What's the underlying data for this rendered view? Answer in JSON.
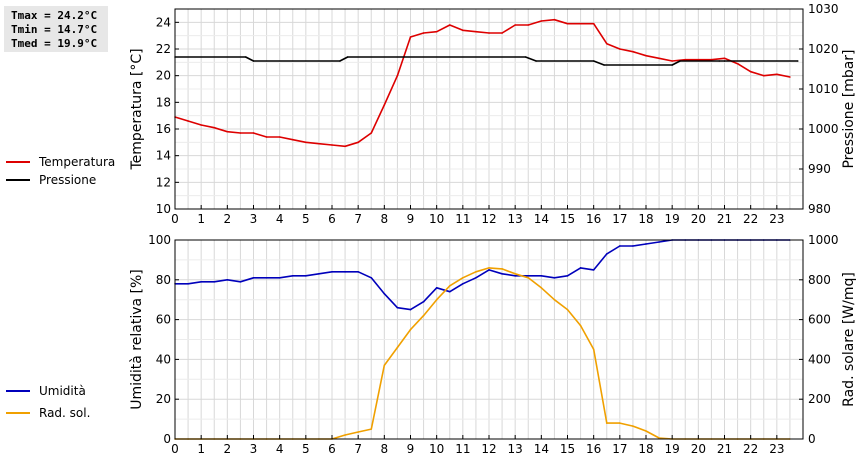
{
  "stats": {
    "tmax": "Tmax = 24.2°C",
    "tmin": "Tmin = 14.7°C",
    "tmed": "Tmed = 19.9°C"
  },
  "legend_top": [
    {
      "label": "Temperatura",
      "color": "#dd0000"
    },
    {
      "label": "Pressione",
      "color": "#000000"
    }
  ],
  "legend_bottom": [
    {
      "label": "Umidità",
      "color": "#0000bb"
    },
    {
      "label": "Rad. sol.",
      "color": "#f0a000"
    }
  ],
  "chart_data": [
    {
      "type": "line",
      "xlabel": "",
      "ylabel": "Temperatura [°C]",
      "y2label": "Pressione [mbar]",
      "xlim": [
        0,
        24
      ],
      "ylim": [
        10,
        25
      ],
      "y2lim": [
        980,
        1030
      ],
      "x_ticks": [
        0,
        1,
        2,
        3,
        4,
        5,
        6,
        7,
        8,
        9,
        10,
        11,
        12,
        13,
        14,
        15,
        16,
        17,
        18,
        19,
        20,
        21,
        22,
        23
      ],
      "y_ticks": [
        10,
        12,
        14,
        16,
        18,
        20,
        22,
        24
      ],
      "y2_ticks": [
        980,
        990,
        1000,
        1010,
        1020,
        1030
      ],
      "grid": true,
      "series": [
        {
          "name": "Temperatura",
          "axis": "left",
          "color": "#dd0000",
          "x": [
            0,
            0.5,
            1,
            1.5,
            2,
            2.5,
            3,
            3.5,
            4,
            4.5,
            5,
            5.5,
            6,
            6.5,
            7,
            7.5,
            8,
            8.5,
            9,
            9.5,
            10,
            10.5,
            11,
            11.5,
            12,
            12.5,
            13,
            13.5,
            14,
            14.5,
            15,
            15.5,
            16,
            16.5,
            17,
            17.5,
            18,
            18.5,
            19,
            19.5,
            20,
            20.5,
            21,
            21.5,
            22,
            22.5,
            23,
            23.5
          ],
          "values": [
            16.9,
            16.6,
            16.3,
            16.1,
            15.8,
            15.7,
            15.7,
            15.4,
            15.4,
            15.2,
            15.0,
            14.9,
            14.8,
            14.7,
            15.0,
            15.7,
            17.8,
            20.0,
            22.9,
            23.2,
            23.3,
            23.8,
            23.4,
            23.3,
            23.2,
            23.2,
            23.8,
            23.8,
            24.1,
            24.2,
            23.9,
            23.9,
            23.9,
            22.4,
            22.0,
            21.8,
            21.5,
            21.3,
            21.1,
            21.2,
            21.2,
            21.2,
            21.3,
            20.9,
            20.3,
            20.0,
            20.1,
            19.9
          ]
        },
        {
          "name": "Pressione",
          "axis": "right",
          "color": "#000000",
          "x": [
            0,
            2.7,
            3,
            6.3,
            6.6,
            13.4,
            13.8,
            16,
            16.4,
            19,
            19.3,
            20.8,
            21,
            23.8
          ],
          "values": [
            1018,
            1018,
            1017,
            1017,
            1018,
            1018,
            1017,
            1017,
            1016,
            1016,
            1017,
            1017,
            1017,
            1017
          ]
        }
      ]
    },
    {
      "type": "line",
      "xlabel": "",
      "ylabel": "Umidità relativa [%]",
      "y2label": "Rad. solare [W/mq]",
      "xlim": [
        0,
        24
      ],
      "ylim": [
        0,
        100
      ],
      "y2lim": [
        0,
        1000
      ],
      "x_ticks": [
        0,
        1,
        2,
        3,
        4,
        5,
        6,
        7,
        8,
        9,
        10,
        11,
        12,
        13,
        14,
        15,
        16,
        17,
        18,
        19,
        20,
        21,
        22,
        23
      ],
      "y_ticks": [
        0,
        20,
        40,
        60,
        80,
        100
      ],
      "y2_ticks": [
        0,
        200,
        400,
        600,
        800,
        1000
      ],
      "grid": true,
      "series": [
        {
          "name": "Umidità",
          "axis": "left",
          "color": "#0000bb",
          "x": [
            0,
            0.5,
            1,
            1.5,
            2,
            2.5,
            3,
            3.5,
            4,
            4.5,
            5,
            5.5,
            6,
            6.5,
            7,
            7.5,
            8,
            8.5,
            9,
            9.5,
            10,
            10.5,
            11,
            11.5,
            12,
            12.5,
            13,
            13.5,
            14,
            14.5,
            15,
            15.5,
            16,
            16.5,
            17,
            17.5,
            18,
            18.5,
            19,
            19.5,
            20,
            20.5,
            21,
            21.5,
            22,
            22.5,
            23,
            23.5
          ],
          "values": [
            78,
            78,
            79,
            79,
            80,
            79,
            81,
            81,
            81,
            82,
            82,
            83,
            84,
            84,
            84,
            81,
            73,
            66,
            65,
            69,
            76,
            74,
            78,
            81,
            85,
            83,
            82,
            82,
            82,
            81,
            82,
            86,
            85,
            93,
            97,
            97,
            98,
            99,
            100,
            100,
            100,
            100,
            100,
            100,
            100,
            100,
            100,
            100
          ]
        },
        {
          "name": "Rad. sol.",
          "axis": "right",
          "color": "#f0a000",
          "x": [
            0,
            0.5,
            1,
            1.5,
            2,
            2.5,
            3,
            3.5,
            4,
            4.5,
            5,
            5.5,
            6,
            6.5,
            7,
            7.5,
            8,
            8.5,
            9,
            9.5,
            10,
            10.5,
            11,
            11.5,
            12,
            12.5,
            13,
            13.5,
            14,
            14.5,
            15,
            15.5,
            16,
            16.5,
            17,
            17.5,
            18,
            18.5,
            19,
            19.5,
            20,
            20.5,
            21,
            21.5,
            22,
            22.5,
            23,
            23.5
          ],
          "values": [
            0,
            0,
            0,
            0,
            0,
            0,
            0,
            0,
            0,
            0,
            0,
            0,
            0,
            20,
            35,
            50,
            370,
            460,
            550,
            620,
            700,
            770,
            810,
            840,
            860,
            855,
            830,
            810,
            760,
            700,
            650,
            570,
            450,
            80,
            80,
            65,
            40,
            5,
            0,
            0,
            0,
            0,
            0,
            0,
            0,
            0,
            0,
            0
          ]
        }
      ]
    }
  ]
}
